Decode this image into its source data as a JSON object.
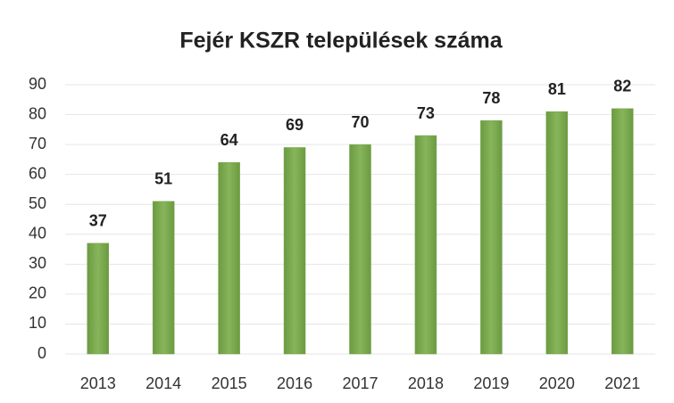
{
  "chart_data": {
    "type": "bar",
    "title": "Fejér KSZR települések száma",
    "categories": [
      "2013",
      "2014",
      "2015",
      "2016",
      "2017",
      "2018",
      "2019",
      "2020",
      "2021"
    ],
    "values": [
      37,
      51,
      64,
      69,
      70,
      73,
      78,
      81,
      82
    ],
    "color": "#77a64c",
    "ylim": [
      0,
      90
    ],
    "yticks": [
      0,
      10,
      20,
      30,
      40,
      50,
      60,
      70,
      80,
      90
    ],
    "grid": true
  }
}
